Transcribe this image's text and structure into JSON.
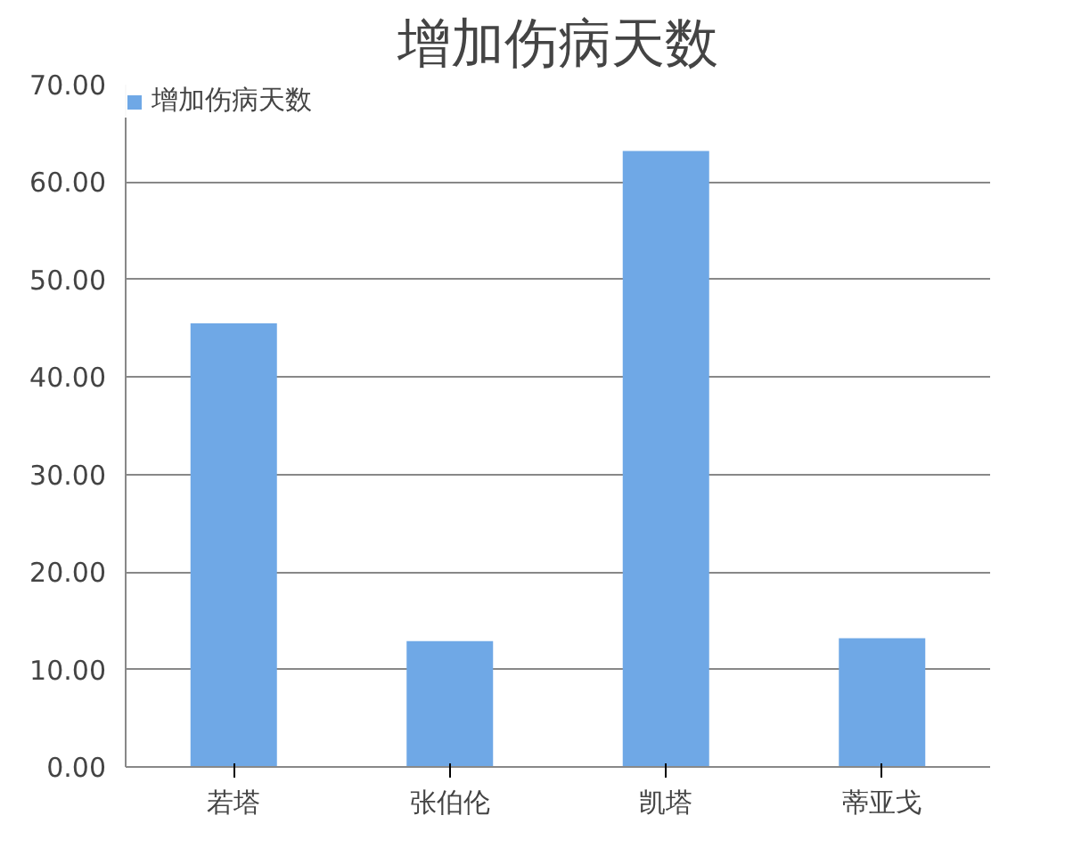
{
  "chart_data": {
    "type": "bar",
    "title": "增加伤病天数",
    "categories": [
      "若塔",
      "张伯伦",
      "凯塔",
      "蒂亚戈"
    ],
    "series": [
      {
        "name": "增加伤病天数",
        "color": "#6fa8e6",
        "values": [
          45.5,
          12.9,
          63.2,
          13.2
        ]
      }
    ],
    "ylim": [
      0,
      70
    ],
    "yticks": [
      {
        "value": 0,
        "label": "0.00"
      },
      {
        "value": 10,
        "label": "10.00"
      },
      {
        "value": 20,
        "label": "20.00"
      },
      {
        "value": 30,
        "label": "30.00"
      },
      {
        "value": 40,
        "label": "40.00"
      },
      {
        "value": 50,
        "label": "50.00"
      },
      {
        "value": 60,
        "label": "60.00"
      },
      {
        "value": 70,
        "label": "70.00"
      }
    ],
    "grid": "y",
    "legend": "top left"
  }
}
